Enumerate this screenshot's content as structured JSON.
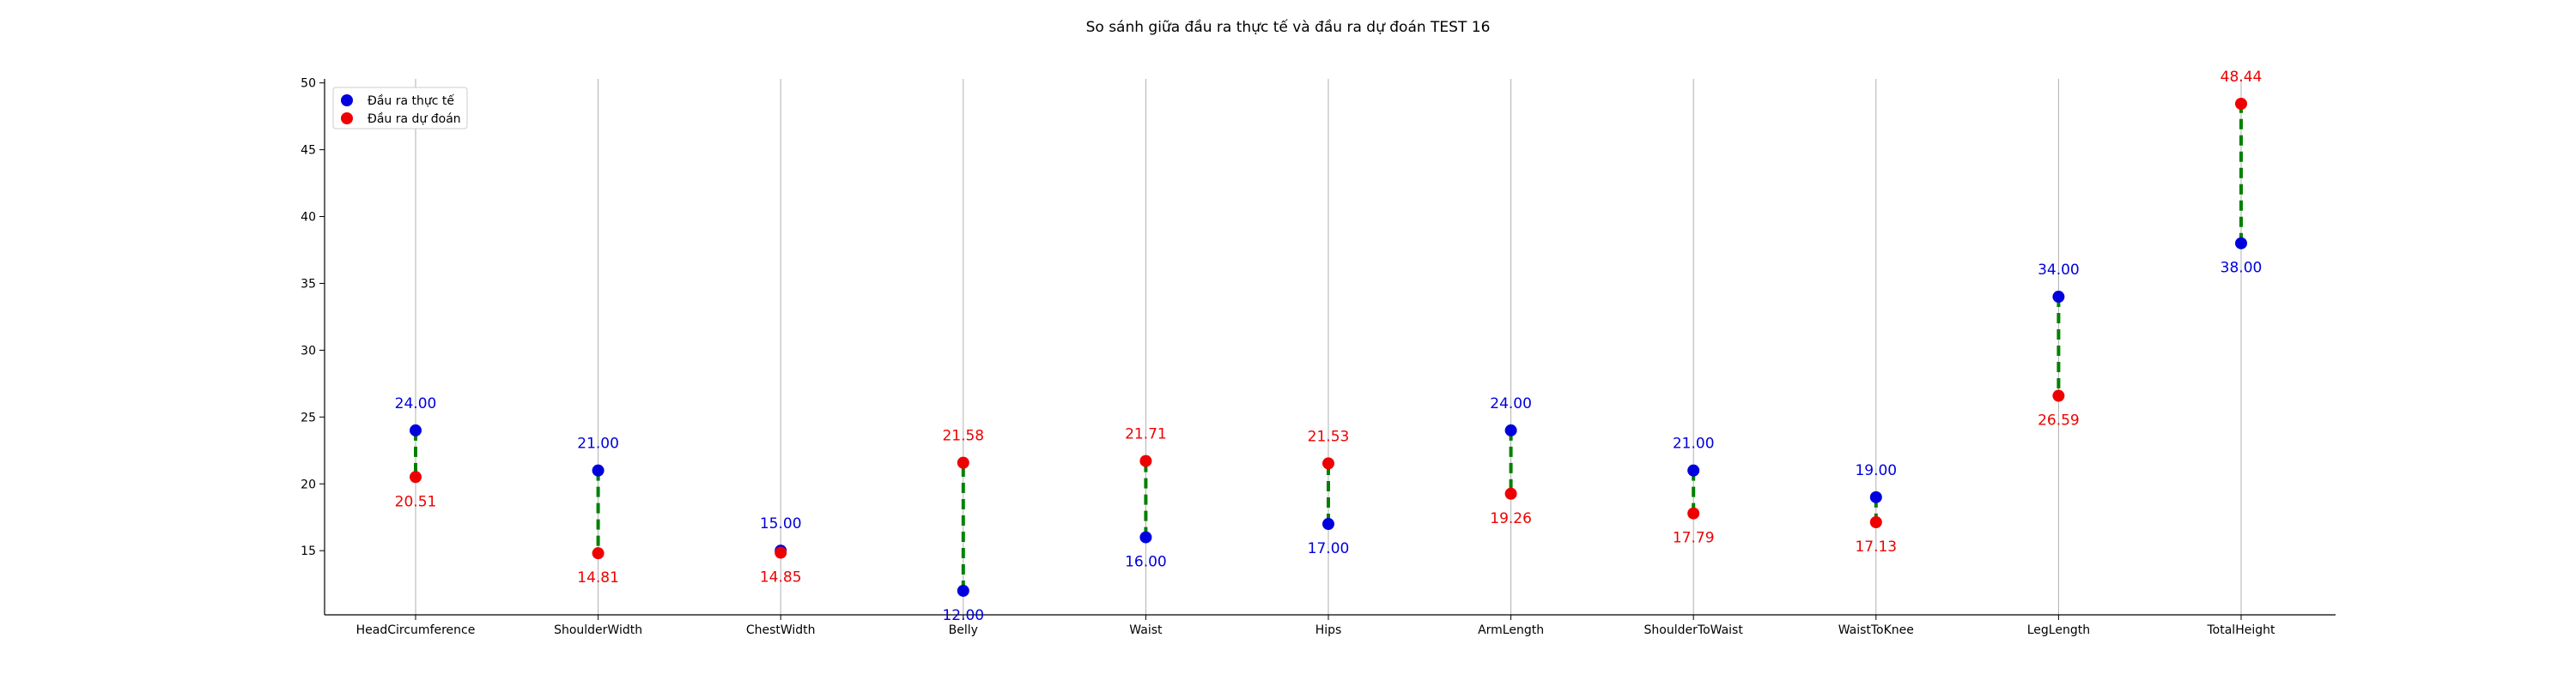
{
  "chart_data": {
    "type": "scatter",
    "title": "So sánh giữa đầu ra thực tế và đầu ra dự đoán TEST 16",
    "xlabel": "",
    "ylabel": "",
    "categories": [
      "HeadCircumference",
      "ShoulderWidth",
      "ChestWidth",
      "Belly",
      "Waist",
      "Hips",
      "ArmLength",
      "ShoulderToWaist",
      "WaistToKnee",
      "LegLength",
      "TotalHeight"
    ],
    "series": [
      {
        "name": "Đầu ra thực tế",
        "color": "#0000dd",
        "values": [
          24.0,
          21.0,
          15.0,
          12.0,
          16.0,
          17.0,
          24.0,
          21.0,
          19.0,
          34.0,
          38.0
        ],
        "labels": [
          "24.00",
          "21.00",
          "15.00",
          "12.00",
          "16.00",
          "17.00",
          "24.00",
          "21.00",
          "19.00",
          "34.00",
          "38.00"
        ]
      },
      {
        "name": "Đầu ra dự đoán",
        "color": "#ee0000",
        "values": [
          20.51,
          14.81,
          14.85,
          21.58,
          21.71,
          21.53,
          19.26,
          17.79,
          17.13,
          26.59,
          48.44
        ],
        "labels": [
          "20.51",
          "14.81",
          "14.85",
          "21.58",
          "21.71",
          "21.53",
          "19.26",
          "17.79",
          "17.13",
          "26.59",
          "48.44"
        ]
      }
    ],
    "connector_color": "#008000",
    "ylim": [
      10.2,
      50.3
    ],
    "yticks": [
      15,
      20,
      25,
      30,
      35,
      40,
      45,
      50
    ],
    "grid": "vertical",
    "legend_position": "top-left"
  }
}
